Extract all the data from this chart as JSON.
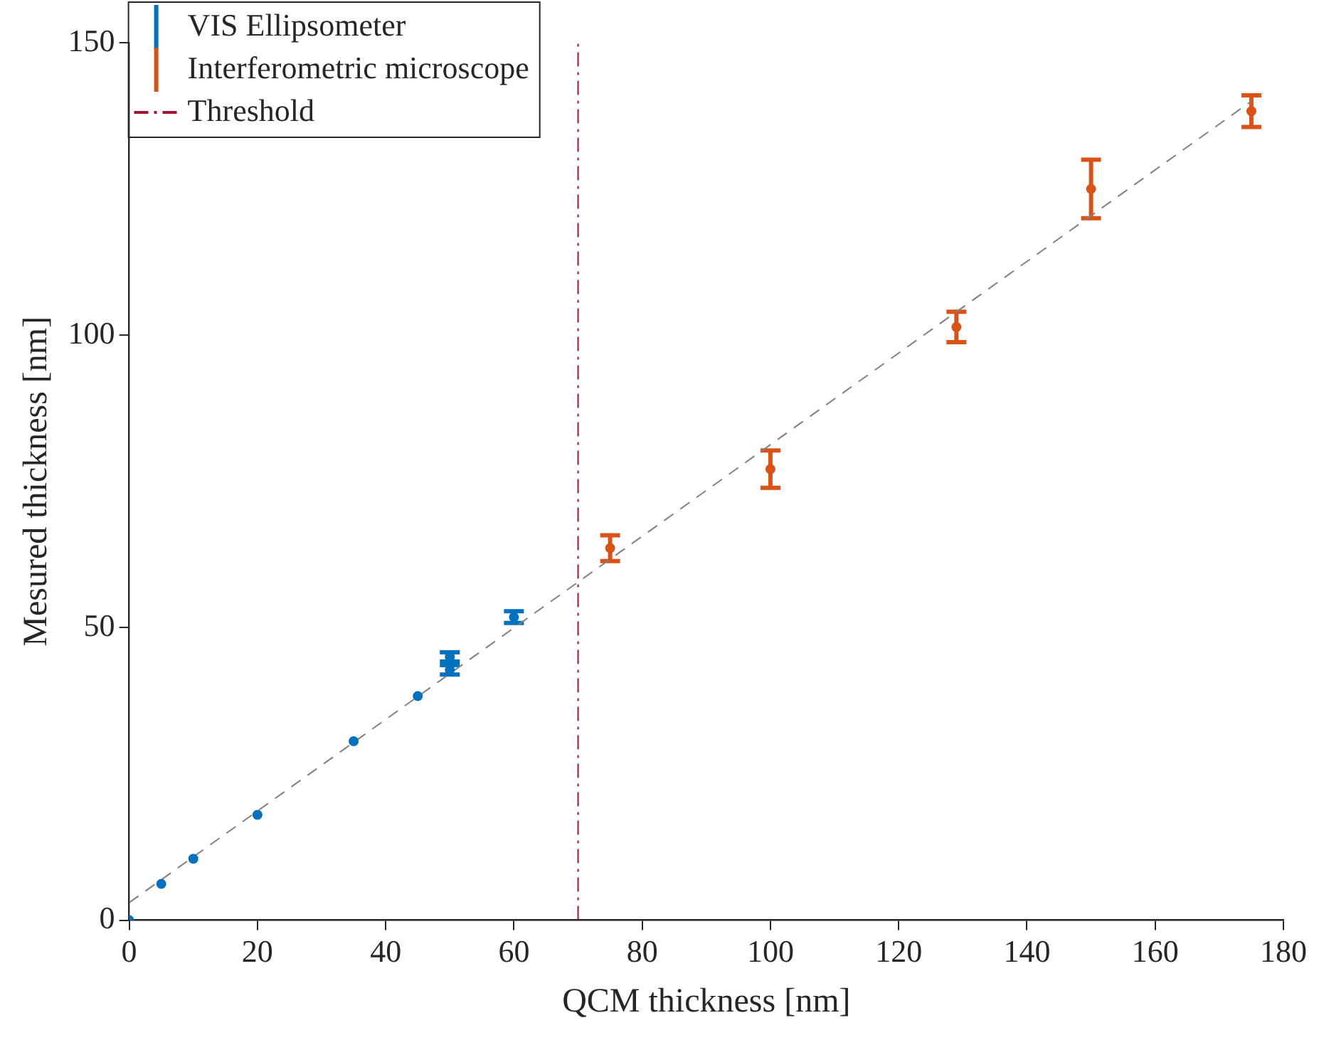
{
  "chart_data": {
    "type": "scatter",
    "xlabel": "QCM thickness [nm]",
    "ylabel": "Mesured thickness [nm]",
    "xlim": [
      0,
      180
    ],
    "xticks": [
      0,
      20,
      40,
      60,
      80,
      100,
      120,
      140,
      160,
      180
    ],
    "ylim": [
      0,
      150
    ],
    "yticks": [
      0,
      50,
      100,
      150
    ],
    "grid": false,
    "legend": "top left",
    "marker": "circle",
    "series": [
      {
        "name": "VIS Ellipsometer",
        "color": "#0072bd",
        "x": [
          0,
          5,
          10,
          20,
          35,
          45,
          50,
          50,
          60
        ],
        "values": [
          0,
          6.2,
          10.5,
          18.0,
          30.6,
          38.3,
          45.0,
          42.8,
          51.8
        ],
        "errors": [
          null,
          null,
          null,
          null,
          null,
          null,
          0.8,
          0.8,
          1
        ]
      },
      {
        "name": "Interferometric microscope",
        "color": "#d95319",
        "x": [
          75,
          100,
          129,
          150,
          175
        ],
        "values": [
          63.6,
          77.1,
          101.4,
          125.0,
          138.3
        ],
        "errors": [
          2.2,
          3.2,
          2.6,
          5,
          2.7
        ]
      },
      {
        "type": "line",
        "marker": "none",
        "color": "#808080",
        "line_style": "dashed",
        "x": [
          0,
          175
        ],
        "values": [
          3,
          140
        ]
      },
      {
        "type": "line",
        "name": "Threshold",
        "marker": "none",
        "color": "#a2142f",
        "line_style": "dashdot",
        "x": [
          70,
          70
        ],
        "values": [
          0,
          150
        ]
      }
    ]
  }
}
